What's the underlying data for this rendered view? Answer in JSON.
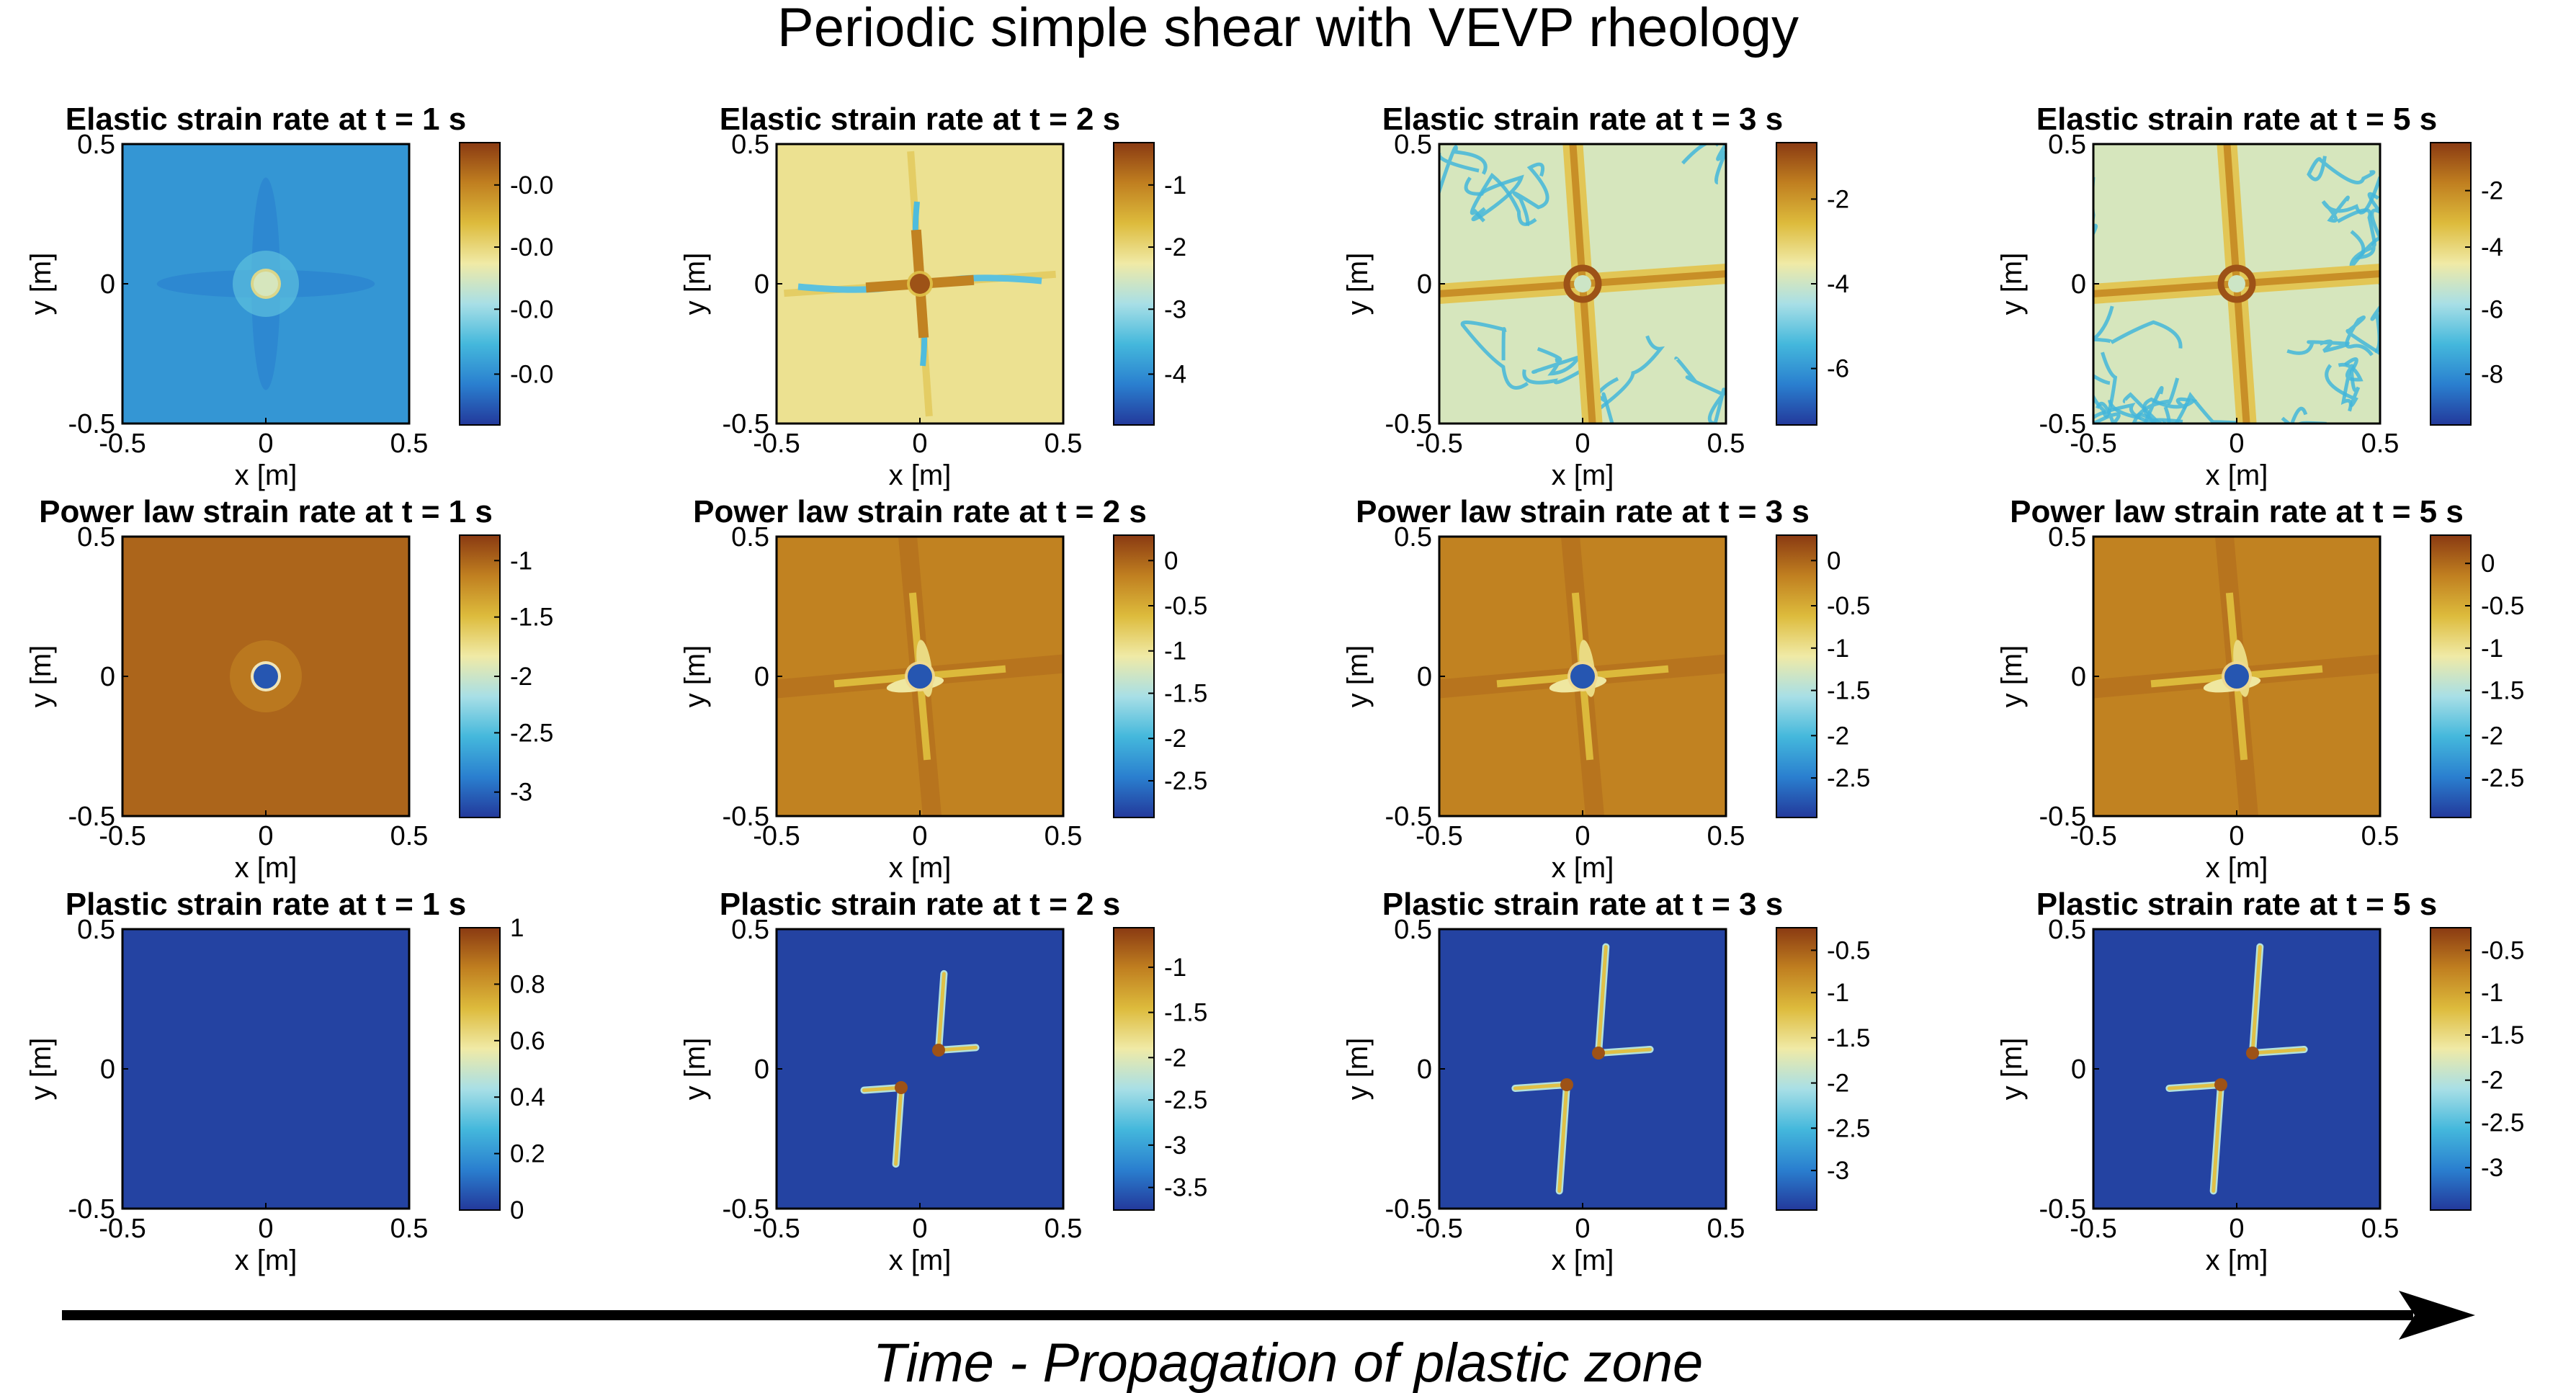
{
  "figure": {
    "title": "Periodic simple shear with VEVP rheology",
    "caption": "Time - Propagation of plastic zone",
    "arrow_icon": "right-arrow-icon"
  },
  "colors": {
    "colormap": [
      "#23399b",
      "#2a7fcf",
      "#44b8dc",
      "#a8dfe6",
      "#f0eaa6",
      "#ddbb3c",
      "#c07f20",
      "#8a3a12"
    ],
    "background": "#ffffff",
    "frame": "#000000"
  },
  "chart_data": [
    {
      "type": "heatmap",
      "title": "Elastic strain rate at t = 1 s",
      "xlabel": "x [m]",
      "ylabel": "y [m]",
      "xlim": [
        -0.5,
        0.5
      ],
      "ylim": [
        -0.5,
        0.5
      ],
      "xticks": [
        "-0.5",
        "0",
        "0.5"
      ],
      "yticks": [
        "0.5",
        "0",
        "-0.5"
      ],
      "field": "elastic-t1",
      "colorbar": {
        "ticks": [
          "-0.0",
          "-0.0",
          "-0.0",
          "-0.0"
        ],
        "pos": [
          0.85,
          0.63,
          0.41,
          0.18
        ]
      }
    },
    {
      "type": "heatmap",
      "title": "Elastic strain rate at t = 2 s",
      "xlabel": "x [m]",
      "ylabel": "y [m]",
      "xlim": [
        -0.5,
        0.5
      ],
      "ylim": [
        -0.5,
        0.5
      ],
      "xticks": [
        "-0.5",
        "0",
        "0.5"
      ],
      "yticks": [
        "0.5",
        "0",
        "-0.5"
      ],
      "field": "elastic-t2",
      "colorbar": {
        "ticks": [
          "-1",
          "-2",
          "-3",
          "-4"
        ],
        "pos": [
          0.85,
          0.63,
          0.41,
          0.18
        ]
      }
    },
    {
      "type": "heatmap",
      "title": "Elastic strain rate at t = 3 s",
      "xlabel": "x [m]",
      "ylabel": "y [m]",
      "xlim": [
        -0.5,
        0.5
      ],
      "ylim": [
        -0.5,
        0.5
      ],
      "xticks": [
        "-0.5",
        "0",
        "0.5"
      ],
      "yticks": [
        "0.5",
        "0",
        "-0.5"
      ],
      "field": "elastic-t3",
      "colorbar": {
        "ticks": [
          "-2",
          "-4",
          "-6"
        ],
        "pos": [
          0.8,
          0.5,
          0.2
        ]
      }
    },
    {
      "type": "heatmap",
      "title": "Elastic strain rate at t = 5 s",
      "xlabel": "x [m]",
      "ylabel": "y [m]",
      "xlim": [
        -0.5,
        0.5
      ],
      "ylim": [
        -0.5,
        0.5
      ],
      "xticks": [
        "-0.5",
        "0",
        "0.5"
      ],
      "yticks": [
        "0.5",
        "0",
        "-0.5"
      ],
      "field": "elastic-t5",
      "colorbar": {
        "ticks": [
          "-2",
          "-4",
          "-6",
          "-8"
        ],
        "pos": [
          0.83,
          0.63,
          0.41,
          0.18
        ]
      }
    },
    {
      "type": "heatmap",
      "title": "Power law strain rate at t = 1 s",
      "xlabel": "x [m]",
      "ylabel": "y [m]",
      "xlim": [
        -0.5,
        0.5
      ],
      "ylim": [
        -0.5,
        0.5
      ],
      "xticks": [
        "-0.5",
        "0",
        "0.5"
      ],
      "yticks": [
        "0.5",
        "0",
        "-0.5"
      ],
      "field": "power-t1",
      "colorbar": {
        "ticks": [
          "-1",
          "-1.5",
          "-2",
          "-2.5",
          "-3"
        ],
        "pos": [
          0.91,
          0.71,
          0.5,
          0.3,
          0.09
        ]
      }
    },
    {
      "type": "heatmap",
      "title": "Power law strain rate at t = 2 s",
      "xlabel": "x [m]",
      "ylabel": "y [m]",
      "xlim": [
        -0.5,
        0.5
      ],
      "ylim": [
        -0.5,
        0.5
      ],
      "xticks": [
        "-0.5",
        "0",
        "0.5"
      ],
      "yticks": [
        "0.5",
        "0",
        "-0.5"
      ],
      "field": "power-t2",
      "colorbar": {
        "ticks": [
          "0",
          "-0.5",
          "-1",
          "-1.5",
          "-2",
          "-2.5"
        ],
        "pos": [
          0.91,
          0.75,
          0.59,
          0.44,
          0.28,
          0.13
        ]
      }
    },
    {
      "type": "heatmap",
      "title": "Power law strain rate at t = 3 s",
      "xlabel": "x [m]",
      "ylabel": "y [m]",
      "xlim": [
        -0.5,
        0.5
      ],
      "ylim": [
        -0.5,
        0.5
      ],
      "xticks": [
        "-0.5",
        "0",
        "0.5"
      ],
      "yticks": [
        "0.5",
        "0",
        "-0.5"
      ],
      "field": "power-t3",
      "colorbar": {
        "ticks": [
          "0",
          "-0.5",
          "-1",
          "-1.5",
          "-2",
          "-2.5"
        ],
        "pos": [
          0.91,
          0.75,
          0.6,
          0.45,
          0.29,
          0.14
        ]
      }
    },
    {
      "type": "heatmap",
      "title": "Power law strain rate at t = 5 s",
      "xlabel": "x [m]",
      "ylabel": "y [m]",
      "xlim": [
        -0.5,
        0.5
      ],
      "ylim": [
        -0.5,
        0.5
      ],
      "xticks": [
        "-0.5",
        "0",
        "0.5"
      ],
      "yticks": [
        "0.5",
        "0",
        "-0.5"
      ],
      "field": "power-t5",
      "colorbar": {
        "ticks": [
          "0",
          "-0.5",
          "-1",
          "-1.5",
          "-2",
          "-2.5"
        ],
        "pos": [
          0.9,
          0.75,
          0.6,
          0.45,
          0.29,
          0.14
        ]
      }
    },
    {
      "type": "heatmap",
      "title": "Plastic strain rate at t = 1 s",
      "xlabel": "x [m]",
      "ylabel": "y [m]",
      "xlim": [
        -0.5,
        0.5
      ],
      "ylim": [
        -0.5,
        0.5
      ],
      "xticks": [
        "-0.5",
        "0",
        "0.5"
      ],
      "yticks": [
        "0.5",
        "0",
        "-0.5"
      ],
      "field": "plastic-t1",
      "colorbar": {
        "ticks": [
          "1",
          "0.8",
          "0.6",
          "0.4",
          "0.2",
          "0"
        ],
        "pos": [
          1.0,
          0.8,
          0.6,
          0.4,
          0.2,
          0.0
        ]
      }
    },
    {
      "type": "heatmap",
      "title": "Plastic strain rate at t = 2 s",
      "xlabel": "x [m]",
      "ylabel": "y [m]",
      "xlim": [
        -0.5,
        0.5
      ],
      "ylim": [
        -0.5,
        0.5
      ],
      "xticks": [
        "-0.5",
        "0",
        "0.5"
      ],
      "yticks": [
        "0.5",
        "0",
        "-0.5"
      ],
      "field": "plastic-t2",
      "colorbar": {
        "ticks": [
          "-1",
          "-1.5",
          "-2",
          "-2.5",
          "-3",
          "-3.5"
        ],
        "pos": [
          0.86,
          0.7,
          0.54,
          0.39,
          0.23,
          0.08
        ]
      }
    },
    {
      "type": "heatmap",
      "title": "Plastic strain rate at t = 3 s",
      "xlabel": "x [m]",
      "ylabel": "y [m]",
      "xlim": [
        -0.5,
        0.5
      ],
      "ylim": [
        -0.5,
        0.5
      ],
      "xticks": [
        "-0.5",
        "0",
        "0.5"
      ],
      "yticks": [
        "0.5",
        "0",
        "-0.5"
      ],
      "field": "plastic-t3",
      "colorbar": {
        "ticks": [
          "-0.5",
          "-1",
          "-1.5",
          "-2",
          "-2.5",
          "-3"
        ],
        "pos": [
          0.92,
          0.77,
          0.61,
          0.45,
          0.29,
          0.14
        ]
      }
    },
    {
      "type": "heatmap",
      "title": "Plastic strain rate at t = 5 s",
      "xlabel": "x [m]",
      "ylabel": "y [m]",
      "xlim": [
        -0.5,
        0.5
      ],
      "ylim": [
        -0.5,
        0.5
      ],
      "xticks": [
        "-0.5",
        "0",
        "0.5"
      ],
      "yticks": [
        "0.5",
        "0",
        "-0.5"
      ],
      "field": "plastic-t5",
      "colorbar": {
        "ticks": [
          "-0.5",
          "-1",
          "-1.5",
          "-2",
          "-2.5",
          "-3"
        ],
        "pos": [
          0.92,
          0.77,
          0.62,
          0.46,
          0.31,
          0.15
        ]
      }
    }
  ]
}
